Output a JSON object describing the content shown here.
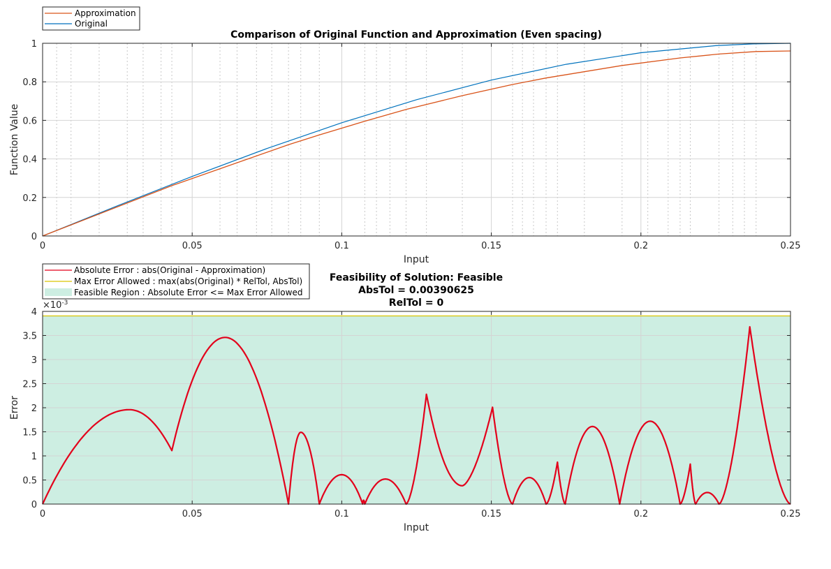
{
  "chart_data": [
    {
      "type": "line",
      "title": "Comparison of Original Function and Approximation (Even spacing)",
      "xlabel": "Input",
      "ylabel": "Function Value",
      "xlim": [
        0,
        0.25
      ],
      "ylim": [
        0,
        1
      ],
      "xticks": [
        0,
        0.05,
        0.1,
        0.15,
        0.2,
        0.25
      ],
      "xtick_labels": [
        "0",
        "0.05",
        "0.1",
        "0.15",
        "0.2",
        "0.25"
      ],
      "yticks": [
        0,
        0.2,
        0.4,
        0.6,
        0.8,
        1
      ],
      "ytick_labels": [
        "0",
        "0.2",
        "0.4",
        "0.6",
        "0.8",
        "1"
      ],
      "minor_x_gridlines": [
        0.0047,
        0.0095,
        0.0189,
        0.0283,
        0.0336,
        0.0396,
        0.0432,
        0.0593,
        0.065,
        0.0715,
        0.0766,
        0.0822,
        0.0863,
        0.0925,
        0.1077,
        0.1116,
        0.1161,
        0.1215,
        0.1283,
        0.1403,
        0.1571,
        0.1604,
        0.1641,
        0.1683,
        0.1721,
        0.1811,
        0.1937,
        0.2023,
        0.2091,
        0.2131,
        0.2165,
        0.2261,
        0.2307,
        0.2346,
        0.2385
      ],
      "grid": true,
      "legend_position": "top-left outside",
      "series": [
        {
          "name": "Approximation",
          "color": "#d95319",
          "x": [
            0,
            0.0432,
            0.0822,
            0.0925,
            0.1077,
            0.1215,
            0.1403,
            0.1571,
            0.1683,
            0.1937,
            0.2131,
            0.2261,
            0.2385,
            0.25
          ],
          "y": [
            0,
            0.2614,
            0.4734,
            0.5244,
            0.5955,
            0.6564,
            0.7284,
            0.7862,
            0.82,
            0.8847,
            0.9239,
            0.9441,
            0.9573,
            0.9601
          ]
        },
        {
          "name": "Original",
          "color": "#0072bd",
          "x": [
            0,
            0.025,
            0.05,
            0.075,
            0.1,
            0.125,
            0.15,
            0.175,
            0.2,
            0.225,
            0.2375,
            0.25
          ],
          "y": [
            0,
            0.1564,
            0.309,
            0.454,
            0.5878,
            0.7071,
            0.809,
            0.891,
            0.9511,
            0.9877,
            0.9969,
            1
          ]
        }
      ]
    },
    {
      "type": "area",
      "title": [
        "Feasibility of Solution: Feasible",
        "AbsTol = 0.00390625",
        "RelTol = 0"
      ],
      "xlabel": "Input",
      "ylabel": "Error",
      "y_exponent": "×10",
      "y_exponent_power": "-3",
      "xlim": [
        0,
        0.25
      ],
      "ylim": [
        0,
        0.004
      ],
      "xticks": [
        0,
        0.05,
        0.1,
        0.15,
        0.2,
        0.25
      ],
      "xtick_labels": [
        "0",
        "0.05",
        "0.1",
        "0.15",
        "0.2",
        "0.25"
      ],
      "yticks": [
        0,
        0.0005,
        0.001,
        0.0015,
        0.002,
        0.0025,
        0.003,
        0.0035,
        0.004
      ],
      "ytick_labels": [
        "0",
        "0.5",
        "1",
        "1.5",
        "2",
        "2.5",
        "3",
        "3.5",
        "4"
      ],
      "grid": true,
      "legend_position": "top-left outside",
      "feasible_region_upper": 0.00390625,
      "series": [
        {
          "name": "Absolute Error : abs(Original - Approximation)",
          "color": "#e3001b",
          "segments": [
            {
              "x0": 0,
              "x1": 0.0432,
              "peak_x": 0.029,
              "peak": 0.00196,
              "y0": 0,
              "y1": 0.00111
            },
            {
              "x0": 0.0432,
              "x1": 0.0822,
              "peak_x": 0.061,
              "peak": 0.00346,
              "y0": 0.00111,
              "y1": 0
            },
            {
              "x0": 0.0822,
              "x1": 0.0925,
              "peak_x": 0.0863,
              "peak": 0.00149,
              "y0": 0,
              "y1": 0
            },
            {
              "x0": 0.0925,
              "x1": 0.107,
              "peak_x": 0.1,
              "peak": 0.00061,
              "y0": 0,
              "y1": 0
            },
            {
              "x0": 0.107,
              "x1": 0.1077,
              "peak_x": 0.1073,
              "peak": 8e-05,
              "y0": 0,
              "y1": 0
            },
            {
              "x0": 0.1077,
              "x1": 0.1215,
              "peak_x": 0.1146,
              "peak": 0.00052,
              "y0": 0,
              "y1": 0
            },
            {
              "x0": 0.1215,
              "x1": 0.1283,
              "peak_x": 0.1283,
              "peak": 0.00228,
              "y0": 0,
              "y1": 0.00228
            },
            {
              "x0": 0.1283,
              "x1": 0.1403,
              "peak_x": 0.1403,
              "peak": 0.00038,
              "y0": 0.00228,
              "y1": 0.00038,
              "kind": "valley"
            },
            {
              "x0": 0.1403,
              "x1": 0.1504,
              "peak_x": 0.1504,
              "peak": 0.00201,
              "y0": 0.00038,
              "y1": 0.00201
            },
            {
              "x0": 0.1504,
              "x1": 0.1571,
              "peak_x": 0.1504,
              "peak": 0.00201,
              "y0": 0.00201,
              "y1": 0
            },
            {
              "x0": 0.1571,
              "x1": 0.1683,
              "peak_x": 0.1627,
              "peak": 0.00055,
              "y0": 0,
              "y1": 0
            },
            {
              "x0": 0.1683,
              "x1": 0.1721,
              "peak_x": 0.1721,
              "peak": 0.00087,
              "y0": 0,
              "y1": 0.00087
            },
            {
              "x0": 0.1721,
              "x1": 0.1747,
              "peak_x": 0.1721,
              "peak": 0.00087,
              "y0": 0.00087,
              "y1": 0
            },
            {
              "x0": 0.1747,
              "x1": 0.1929,
              "peak_x": 0.1838,
              "peak": 0.00161,
              "y0": 0,
              "y1": 0
            },
            {
              "x0": 0.1929,
              "x1": 0.2131,
              "peak_x": 0.2031,
              "peak": 0.00172,
              "y0": 0,
              "y1": 0
            },
            {
              "x0": 0.2131,
              "x1": 0.2165,
              "peak_x": 0.2165,
              "peak": 0.00083,
              "y0": 0,
              "y1": 0.00083
            },
            {
              "x0": 0.2165,
              "x1": 0.2183,
              "peak_x": 0.2165,
              "peak": 0.00083,
              "y0": 0.00083,
              "y1": 0
            },
            {
              "x0": 0.2183,
              "x1": 0.2261,
              "peak_x": 0.2222,
              "peak": 0.00024,
              "y0": 0,
              "y1": 0
            },
            {
              "x0": 0.2261,
              "x1": 0.2364,
              "peak_x": 0.2364,
              "peak": 0.00368,
              "y0": 0,
              "y1": 0.00368
            },
            {
              "x0": 0.2364,
              "x1": 0.25,
              "peak_x": 0.2364,
              "peak": 0.00368,
              "y0": 0.00368,
              "y1": 0
            }
          ]
        },
        {
          "name": "Max Error Allowed : max(abs(Original) * RelTol, AbsTol)",
          "color": "#d9c400",
          "value": 0.00390625
        },
        {
          "name": "Feasible Region : Absolute Error <= Max Error Allowed",
          "color": "#cdeee2"
        }
      ]
    }
  ]
}
